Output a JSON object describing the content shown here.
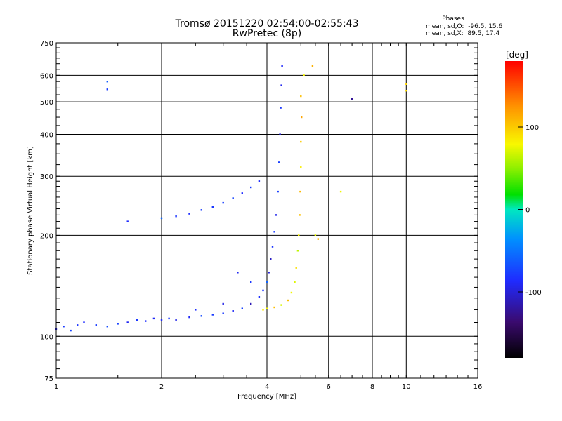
{
  "header": {
    "title": "Tromsø 20151220 02:54:00-02:55:43",
    "subtitle": "RwPretec (8p)"
  },
  "phase_info": {
    "heading": "Phases",
    "line_o": "mean, sd,O:  -96.5, 15.6",
    "line_x": "mean, sd,X:  89.5, 17.4"
  },
  "colorbar": {
    "unit_label": "[deg]",
    "ticks": [
      "100",
      "0",
      "-100"
    ],
    "tick_values": [
      100,
      0,
      -100
    ],
    "range": [
      -180,
      180
    ]
  },
  "chart_data": {
    "type": "scatter",
    "title": "Tromsø 20151220 02:54:00-02:55:43",
    "subtitle": "RwPretec (8p)",
    "xlabel": "Frequency [MHz]",
    "ylabel": "Stationary phase Virtual Height [km]",
    "xscale": "log",
    "yscale": "log",
    "xlim": [
      1,
      16
    ],
    "ylim": [
      75,
      750
    ],
    "x_ticks": [
      "1",
      "2",
      "4",
      "6",
      "8",
      "10",
      "16"
    ],
    "x_tick_values": [
      1,
      2,
      4,
      6,
      8,
      10,
      16
    ],
    "y_ticks": [
      "750",
      "600",
      "500",
      "400",
      "300",
      "200",
      "100",
      "75"
    ],
    "y_tick_values": [
      750,
      600,
      500,
      400,
      300,
      200,
      100,
      75
    ],
    "grid": true,
    "color_scale": "phase [deg], -180 to 180 (black-purple-blue-cyan-green-yellow-orange-red)",
    "series": [
      {
        "mode": "O",
        "phase_mean": -96.5,
        "phase_sd": 15.6,
        "points": [
          [
            1.0,
            105
          ],
          [
            1.05,
            107
          ],
          [
            1.1,
            104
          ],
          [
            1.15,
            108
          ],
          [
            1.2,
            110
          ],
          [
            1.3,
            108
          ],
          [
            1.4,
            107
          ],
          [
            1.5,
            109
          ],
          [
            1.6,
            110
          ],
          [
            1.7,
            112
          ],
          [
            1.8,
            111
          ],
          [
            1.9,
            113
          ],
          [
            2.0,
            112
          ],
          [
            2.1,
            113
          ],
          [
            2.2,
            112
          ],
          [
            2.4,
            114
          ],
          [
            2.6,
            115
          ],
          [
            2.8,
            116
          ],
          [
            3.0,
            117
          ],
          [
            3.2,
            119
          ],
          [
            3.4,
            121
          ],
          [
            3.6,
            125
          ],
          [
            3.8,
            131
          ],
          [
            3.9,
            137
          ],
          [
            4.0,
            145
          ],
          [
            4.05,
            155
          ],
          [
            4.1,
            170
          ],
          [
            4.15,
            185
          ],
          [
            4.2,
            205
          ],
          [
            4.25,
            230
          ],
          [
            4.3,
            270
          ],
          [
            4.33,
            330
          ],
          [
            4.36,
            400
          ],
          [
            4.38,
            480
          ],
          [
            4.4,
            560
          ],
          [
            4.42,
            640
          ],
          [
            2.0,
            225
          ],
          [
            2.2,
            228
          ],
          [
            2.4,
            232
          ],
          [
            2.6,
            238
          ],
          [
            2.8,
            243
          ],
          [
            3.0,
            250
          ],
          [
            3.2,
            258
          ],
          [
            3.4,
            267
          ],
          [
            3.6,
            278
          ],
          [
            3.8,
            290
          ],
          [
            3.6,
            145
          ],
          [
            3.3,
            155
          ],
          [
            3.0,
            125
          ],
          [
            2.5,
            120
          ],
          [
            1.4,
            575
          ],
          [
            1.4,
            545
          ],
          [
            1.6,
            220
          ],
          [
            7.0,
            510
          ]
        ]
      },
      {
        "mode": "X",
        "phase_mean": 89.5,
        "phase_sd": 17.4,
        "points": [
          [
            3.9,
            120
          ],
          [
            4.0,
            121
          ],
          [
            4.2,
            122
          ],
          [
            4.4,
            124
          ],
          [
            4.6,
            128
          ],
          [
            4.7,
            135
          ],
          [
            4.8,
            145
          ],
          [
            4.85,
            160
          ],
          [
            4.9,
            180
          ],
          [
            4.93,
            200
          ],
          [
            4.96,
            230
          ],
          [
            4.98,
            270
          ],
          [
            5.0,
            320
          ],
          [
            5.0,
            380
          ],
          [
            5.02,
            450
          ],
          [
            5.0,
            520
          ],
          [
            5.1,
            600
          ],
          [
            5.4,
            640
          ],
          [
            5.5,
            200
          ],
          [
            5.6,
            195
          ],
          [
            10.0,
            565
          ],
          [
            10.0,
            540
          ],
          [
            6.5,
            270
          ]
        ]
      }
    ]
  }
}
